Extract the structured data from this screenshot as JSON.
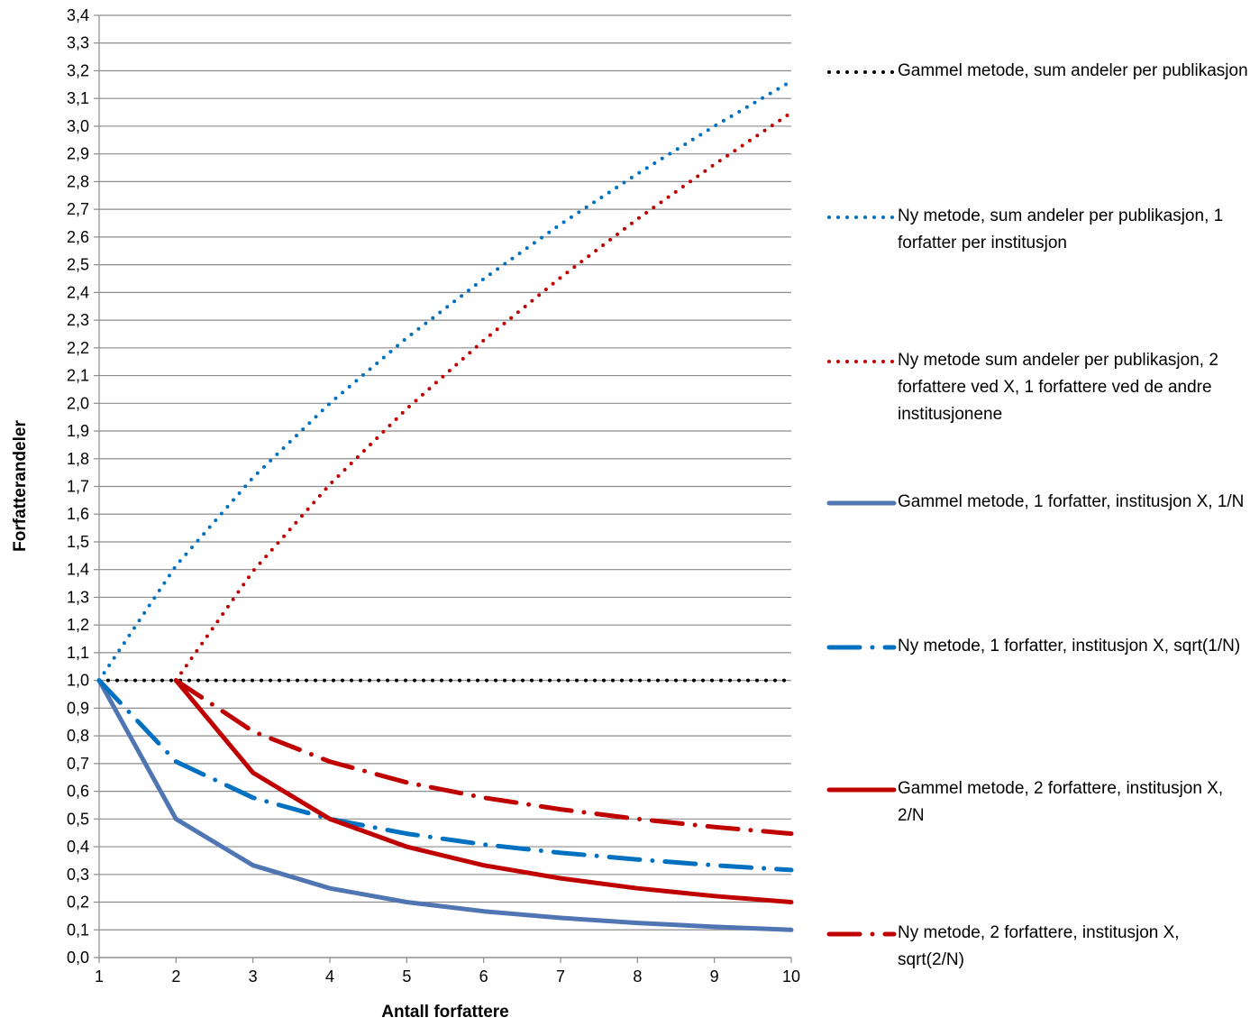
{
  "chart_data": {
    "type": "line",
    "xlabel": "Antall forfattere",
    "ylabel": "Forfatterandeler",
    "xlim": [
      1,
      10
    ],
    "ylim": [
      0,
      3.4
    ],
    "x_ticks": [
      "1",
      "2",
      "3",
      "4",
      "5",
      "6",
      "7",
      "8",
      "9",
      "10"
    ],
    "y_ticks": [
      "0,0",
      "0,1",
      "0,2",
      "0,3",
      "0,4",
      "0,5",
      "0,6",
      "0,7",
      "0,8",
      "0,9",
      "1,0",
      "1,1",
      "1,2",
      "1,3",
      "1,4",
      "1,5",
      "1,6",
      "1,7",
      "1,8",
      "1,9",
      "2,0",
      "2,1",
      "2,2",
      "2,3",
      "2,4",
      "2,5",
      "2,6",
      "2,7",
      "2,8",
      "2,9",
      "3,0",
      "3,1",
      "3,2",
      "3,3",
      "3,4"
    ],
    "grid": "horizontal",
    "legend_position": "right",
    "series": [
      {
        "name": "Gammel metode, sum andeler per publikasjon",
        "color": "#000000",
        "style": "dotted",
        "x": [
          1,
          2,
          3,
          4,
          5,
          6,
          7,
          8,
          9,
          10
        ],
        "values": [
          1,
          1,
          1,
          1,
          1,
          1,
          1,
          1,
          1,
          1
        ]
      },
      {
        "name": "Ny metode, sum andeler per publikasjon, 1 forfatter per institusjon",
        "color": "#0070C0",
        "style": "dotted",
        "x": [
          1,
          2,
          3,
          4,
          5,
          6,
          7,
          8,
          9,
          10
        ],
        "values": [
          1.0,
          1.414,
          1.732,
          2.0,
          2.236,
          2.449,
          2.646,
          2.828,
          3.0,
          3.162
        ]
      },
      {
        "name": "Ny metode sum andeler per publikasjon,  2 forfattere ved X, 1 forfattere ved de andre institusjonene",
        "color": "#C00000",
        "style": "dotted",
        "x": [
          2,
          3,
          4,
          5,
          6,
          7,
          8,
          9,
          10
        ],
        "values": [
          1.0,
          1.394,
          1.707,
          1.98,
          2.227,
          2.454,
          2.665,
          2.862,
          3.049
        ]
      },
      {
        "name": "Gammel metode, 1 forfatter, institusjon X, 1/N",
        "color": "#4F75B2",
        "style": "solid",
        "x": [
          1,
          2,
          3,
          4,
          5,
          6,
          7,
          8,
          9,
          10
        ],
        "values": [
          1.0,
          0.5,
          0.333,
          0.25,
          0.2,
          0.167,
          0.143,
          0.125,
          0.111,
          0.1
        ]
      },
      {
        "name": "Ny metode, 1 forfatter, institusjon X, sqrt(1/N)",
        "color": "#0070C0",
        "style": "dashdot",
        "x": [
          1,
          2,
          3,
          4,
          5,
          6,
          7,
          8,
          9,
          10
        ],
        "values": [
          1.0,
          0.707,
          0.577,
          0.5,
          0.447,
          0.408,
          0.378,
          0.354,
          0.333,
          0.316
        ]
      },
      {
        "name": "Gammel metode,  2 forfattere, institusjon X, 2/N",
        "color": "#C00000",
        "style": "solid",
        "x": [
          2,
          3,
          4,
          5,
          6,
          7,
          8,
          9,
          10
        ],
        "values": [
          1.0,
          0.667,
          0.5,
          0.4,
          0.333,
          0.286,
          0.25,
          0.222,
          0.2
        ]
      },
      {
        "name": "Ny metode, 2 forfattere, institusjon X, sqrt(2/N)",
        "color": "#C00000",
        "style": "dashdot",
        "x": [
          2,
          3,
          4,
          5,
          6,
          7,
          8,
          9,
          10
        ],
        "values": [
          1.0,
          0.816,
          0.707,
          0.632,
          0.577,
          0.535,
          0.5,
          0.471,
          0.447
        ]
      }
    ]
  }
}
